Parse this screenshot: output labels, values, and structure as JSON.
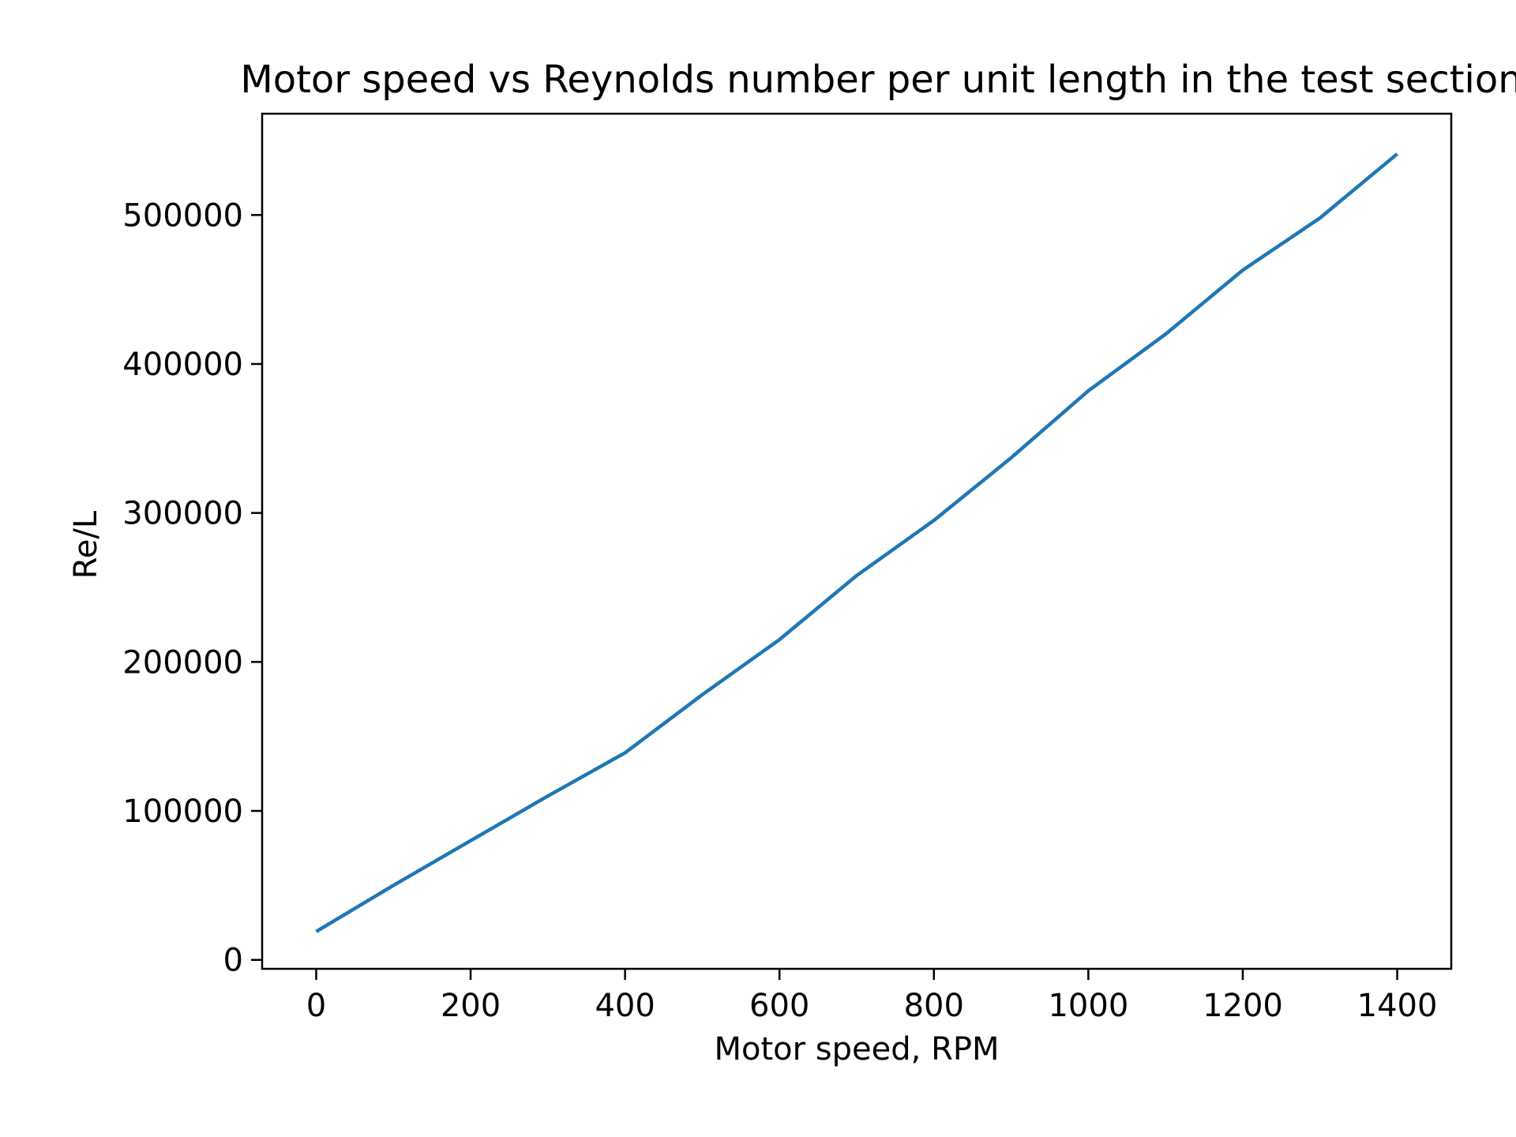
{
  "chart_data": {
    "type": "line",
    "title": "Motor speed vs Reynolds number per unit length in the test section",
    "xlabel": "Motor speed, RPM",
    "ylabel": "Re/L",
    "xlim": [
      -70,
      1470
    ],
    "ylim": [
      -6000,
      568000
    ],
    "x_ticks": [
      0,
      200,
      400,
      600,
      800,
      1000,
      1200,
      1400
    ],
    "y_ticks": [
      0,
      100000,
      200000,
      300000,
      400000,
      500000
    ],
    "grid": false,
    "legend": "none",
    "line_color": "#1f77b4",
    "x": [
      0,
      100,
      200,
      300,
      400,
      500,
      600,
      700,
      800,
      900,
      1000,
      1100,
      1200,
      1300,
      1400
    ],
    "series": [
      {
        "values": [
          19000,
          50000,
          80000,
          110000,
          139000,
          178000,
          215000,
          258000,
          295000,
          337000,
          382000,
          420000,
          463000,
          498000,
          541000
        ]
      }
    ]
  }
}
